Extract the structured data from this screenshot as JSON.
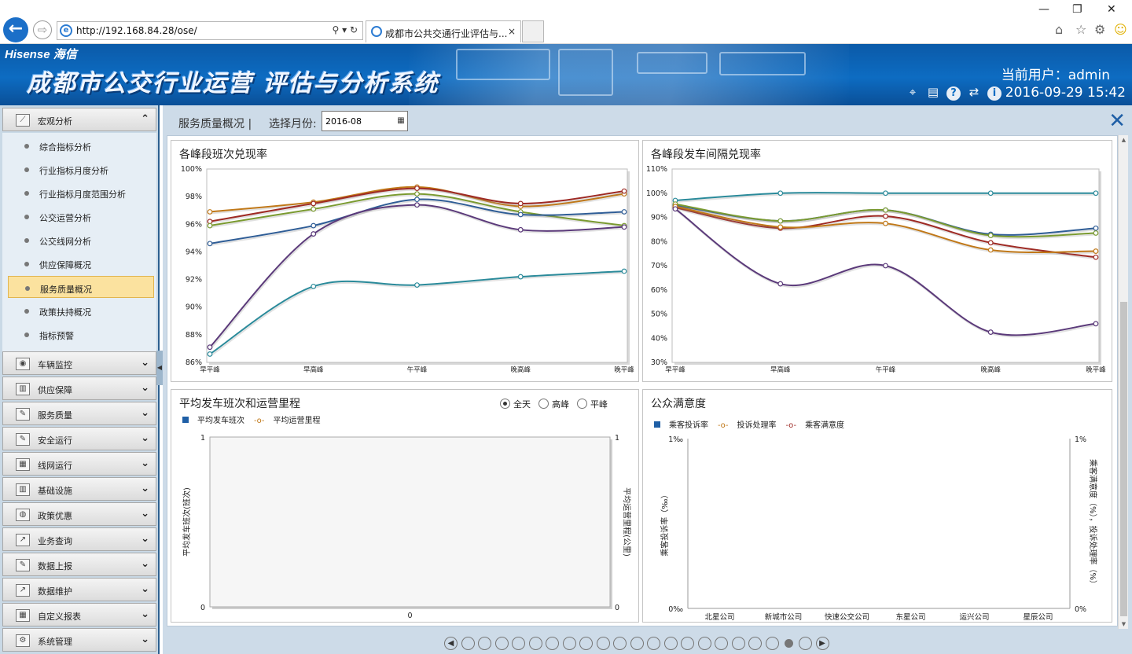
{
  "browser": {
    "url": "http://192.168.84.28/ose/",
    "tab_title": "成都市公共交通行业评估与...",
    "tab_close": "×",
    "addr_controls": "⚲ ▾ ↻"
  },
  "header": {
    "logo": "Hisense 海信",
    "title": "成都市公交行业运营 评估与分析系统",
    "user_label": "当前用户：admin",
    "datetime": "2016-09-29 15:42"
  },
  "sidebar": {
    "menus": [
      {
        "label": "宏观分析",
        "icon": "line-chart-icon"
      },
      {
        "label": "车辆监控",
        "icon": "camera-icon"
      },
      {
        "label": "供应保障",
        "icon": "bar-chart-icon"
      },
      {
        "label": "服务质量",
        "icon": "edit-icon"
      },
      {
        "label": "安全运行",
        "icon": "edit-icon"
      },
      {
        "label": "线网运行",
        "icon": "grid-icon"
      },
      {
        "label": "基础设施",
        "icon": "bar-chart-icon"
      },
      {
        "label": "政策优惠",
        "icon": "globe-icon"
      },
      {
        "label": "业务查询",
        "icon": "trend-icon"
      },
      {
        "label": "数据上报",
        "icon": "edit-icon"
      },
      {
        "label": "数据维护",
        "icon": "trend-icon"
      },
      {
        "label": "自定义报表",
        "icon": "grid-icon"
      },
      {
        "label": "系统管理",
        "icon": "gears-icon"
      }
    ],
    "sub_items": [
      "综合指标分析",
      "行业指标月度分析",
      "行业指标月度范围分析",
      "公交运营分析",
      "公交线网分析",
      "供应保障概况",
      "服务质量概况",
      "政策扶持概况",
      "指标预警"
    ],
    "active_sub": "服务质量概况"
  },
  "toolbar": {
    "crumb": "服务质量概况",
    "separator": "|",
    "month_label": "选择月份:",
    "month_value": "2016-08"
  },
  "colors": {
    "blue": "#2f5d96",
    "red": "#9e2a24",
    "green": "#7a9a30",
    "purple": "#5b3a7a",
    "teal": "#2a8a9a",
    "orange": "#c07818"
  },
  "chart_data": [
    {
      "type": "line",
      "title": "各峰段班次兑现率",
      "categories": [
        "早平峰",
        "早高峰",
        "午平峰",
        "晚高峰",
        "晚平峰"
      ],
      "ylim": [
        86,
        100
      ],
      "yticks": [
        "100%",
        "98%",
        "96%",
        "94%",
        "92%",
        "90%",
        "88%",
        "86%"
      ],
      "series": [
        {
          "color": "orange",
          "values": [
            96.9,
            97.6,
            98.7,
            97.3,
            98.2
          ]
        },
        {
          "color": "red",
          "values": [
            96.2,
            97.5,
            98.6,
            97.5,
            98.4
          ]
        },
        {
          "color": "green",
          "values": [
            95.9,
            97.1,
            98.2,
            96.9,
            95.9
          ]
        },
        {
          "color": "blue",
          "values": [
            94.6,
            95.9,
            97.8,
            96.7,
            96.9
          ]
        },
        {
          "color": "purple",
          "values": [
            87.1,
            95.3,
            97.4,
            95.6,
            95.8
          ]
        },
        {
          "color": "teal",
          "values": [
            86.6,
            91.5,
            91.6,
            92.2,
            92.6
          ]
        }
      ]
    },
    {
      "type": "line",
      "title": "各峰段发车间隔兑现率",
      "categories": [
        "早平峰",
        "早高峰",
        "午平峰",
        "晚高峰",
        "晚平峰"
      ],
      "ylim": [
        30,
        110
      ],
      "yticks": [
        "110%",
        "100%",
        "90%",
        "80%",
        "70%",
        "60%",
        "50%",
        "40%",
        "30%"
      ],
      "series": [
        {
          "color": "teal",
          "values": [
            97,
            100,
            100,
            100,
            100
          ]
        },
        {
          "color": "blue",
          "values": [
            95,
            88.5,
            93,
            83,
            85.5
          ]
        },
        {
          "color": "green",
          "values": [
            95.5,
            88.5,
            93,
            82.5,
            83.5
          ]
        },
        {
          "color": "red",
          "values": [
            94,
            85.5,
            90.5,
            79.5,
            73.5
          ]
        },
        {
          "color": "orange",
          "values": [
            94.5,
            86,
            87.5,
            76.5,
            76
          ]
        },
        {
          "color": "purple",
          "values": [
            93.5,
            62.5,
            70,
            42.5,
            46
          ]
        }
      ]
    },
    {
      "type": "bar",
      "title": "平均发车班次和运营里程",
      "radio_options": [
        {
          "label": "全天",
          "checked": true
        },
        {
          "label": "高峰",
          "checked": false
        },
        {
          "label": "平峰",
          "checked": false
        }
      ],
      "legend": [
        "平均发车班次",
        "平均运营里程"
      ],
      "categories": [
        "0"
      ],
      "ylabel": "平均发车班次(班次)",
      "y2label": "平均运营里程(公里)",
      "yticks": [
        "1",
        "0"
      ],
      "y2ticks": [
        "1",
        "0"
      ]
    },
    {
      "type": "bar",
      "title": "公众满意度",
      "legend": [
        "乘客投诉率",
        "投诉处理率",
        "乘客满意度"
      ],
      "categories": [
        "北星公司",
        "新城市公司",
        "快速公交公司",
        "东星公司",
        "运兴公司",
        "星辰公司"
      ],
      "ylabel": "乘客投诉率（‰）",
      "y2label": "乘客满意度（%），投诉处理率（%）",
      "yticks": [
        "1‰",
        "0‰"
      ],
      "y2ticks": [
        "1%",
        "0%"
      ]
    }
  ],
  "pager": {
    "count": 21,
    "current": 20,
    "prev": "◀",
    "next": "▶"
  }
}
